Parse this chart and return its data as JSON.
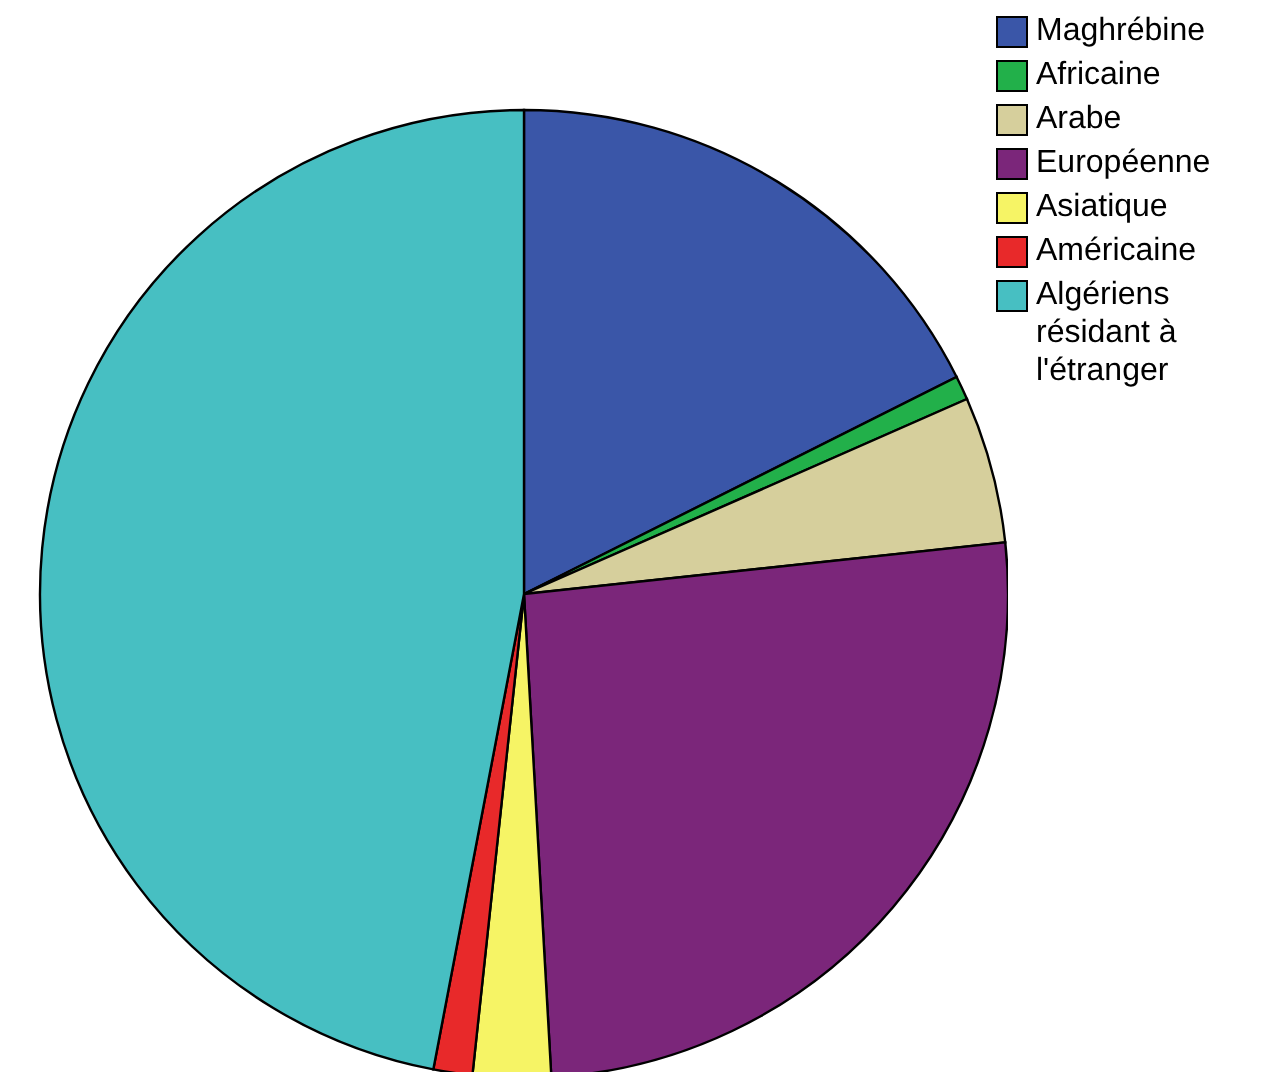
{
  "chart_data": {
    "type": "pie",
    "categories": [
      "Maghrébine",
      "Africaine",
      "Arabe",
      "Européenne",
      "Asiatique",
      "Américaine",
      "Algériens résidant à l'étranger"
    ],
    "values": [
      17.6,
      0.8,
      4.9,
      25.8,
      2.6,
      1.3,
      47.0
    ],
    "colors": [
      "#3a56a8",
      "#22b04a",
      "#d6cf9c",
      "#7b267a",
      "#f6f465",
      "#e8292a",
      "#47bfc2"
    ],
    "legend": "top right"
  }
}
